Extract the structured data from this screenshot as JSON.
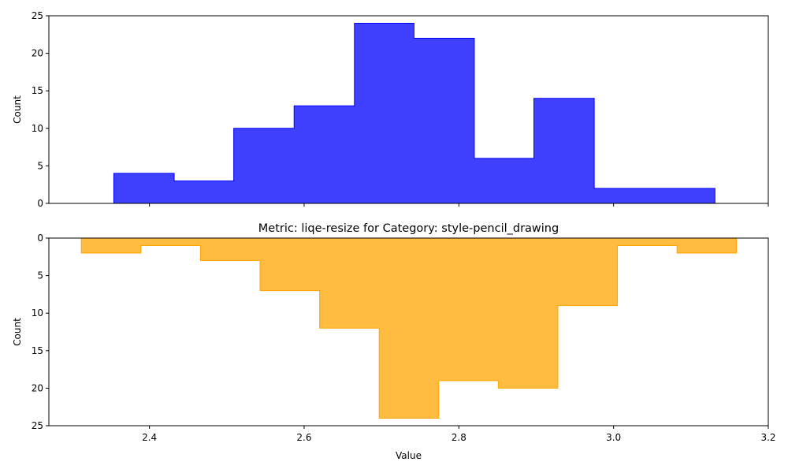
{
  "chart_data": [
    {
      "type": "histogram",
      "title": "",
      "xlabel": "",
      "ylabel": "Count",
      "xlim": [
        2.27,
        3.2
      ],
      "ylim": [
        0,
        25
      ],
      "y_inverted": false,
      "xticks_labeled": false,
      "xticks": [
        2.4,
        2.6,
        2.8,
        3.0,
        3.2
      ],
      "yticks": [
        0,
        5,
        10,
        15,
        20,
        25
      ],
      "color": "#0000ff",
      "fill_opacity": 0.75,
      "bin_edges": [
        2.354,
        2.432,
        2.509,
        2.587,
        2.665,
        2.742,
        2.82,
        2.897,
        2.975,
        3.053,
        3.131
      ],
      "counts": [
        4,
        3,
        10,
        13,
        24,
        22,
        6,
        14,
        2,
        2
      ]
    },
    {
      "type": "histogram",
      "title": "Metric: liqe-resize for Category: style-pencil_drawing",
      "xlabel": "Value",
      "ylabel": "Count",
      "xlim": [
        2.27,
        3.2
      ],
      "ylim": [
        0,
        25
      ],
      "y_inverted": true,
      "xticks_labeled": true,
      "xticks": [
        2.4,
        2.6,
        2.8,
        3.0,
        3.2
      ],
      "xtick_labels": [
        "2.4",
        "2.6",
        "2.8",
        "3.0",
        "3.2"
      ],
      "yticks": [
        0,
        5,
        10,
        15,
        20,
        25
      ],
      "color": "#ffa500",
      "fill_opacity": 0.75,
      "bin_edges": [
        2.312,
        2.389,
        2.466,
        2.543,
        2.62,
        2.697,
        2.774,
        2.851,
        2.928,
        3.005,
        3.082,
        3.159
      ],
      "counts": [
        2,
        1,
        3,
        7,
        12,
        24,
        19,
        20,
        9,
        1,
        2
      ]
    }
  ]
}
